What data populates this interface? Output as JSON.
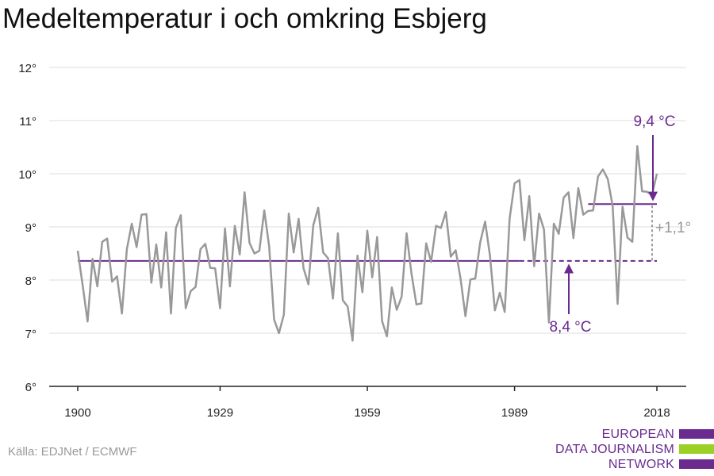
{
  "title": "Medeltemperatur i och omkring Esbjerg",
  "source": "Källa: EDJNet / ECMWF",
  "logo": {
    "lines": [
      "EUROPEAN",
      "DATA JOURNALISM",
      "NETWORK"
    ],
    "colors": [
      "#6a2a8e",
      "#9bd026",
      "#6a2a8e"
    ]
  },
  "chart_data": {
    "type": "line",
    "title": "Medeltemperatur i och omkring Esbjerg",
    "xlabel": "",
    "ylabel": "",
    "xlim": [
      1900,
      2018
    ],
    "ylim": [
      6,
      12
    ],
    "x_ticks": [
      1900,
      1929,
      1959,
      1989,
      2018
    ],
    "x_tick_labels": [
      "1900",
      "1929",
      "1959",
      "1989",
      "2018"
    ],
    "y_ticks": [
      6,
      7,
      8,
      9,
      10,
      11,
      12
    ],
    "y_tick_labels": [
      "6°",
      "7°",
      "8°",
      "9°",
      "10°",
      "11°",
      "12°"
    ],
    "grid": true,
    "legend": "none",
    "series": [
      {
        "color": "#999999",
        "x": [
          1900,
          1901,
          1902,
          1903,
          1904,
          1905,
          1906,
          1907,
          1908,
          1909,
          1910,
          1911,
          1912,
          1913,
          1914,
          1915,
          1916,
          1917,
          1918,
          1919,
          1920,
          1921,
          1922,
          1923,
          1924,
          1925,
          1926,
          1927,
          1928,
          1929,
          1930,
          1931,
          1932,
          1933,
          1934,
          1935,
          1936,
          1937,
          1938,
          1939,
          1940,
          1941,
          1942,
          1943,
          1944,
          1945,
          1946,
          1947,
          1948,
          1949,
          1950,
          1951,
          1952,
          1953,
          1954,
          1955,
          1956,
          1957,
          1958,
          1959,
          1960,
          1961,
          1962,
          1963,
          1964,
          1965,
          1966,
          1967,
          1968,
          1969,
          1970,
          1971,
          1972,
          1973,
          1974,
          1975,
          1976,
          1977,
          1978,
          1979,
          1980,
          1981,
          1982,
          1983,
          1984,
          1985,
          1986,
          1987,
          1988,
          1989,
          1990,
          1991,
          1992,
          1993,
          1994,
          1995,
          1996,
          1997,
          1998,
          1999,
          2000,
          2001,
          2002,
          2003,
          2004,
          2005,
          2006,
          2007,
          2008,
          2009,
          2010,
          2011,
          2012,
          2013,
          2014,
          2015,
          2016,
          2017,
          2018
        ],
        "values": [
          8.55,
          7.9,
          7.22,
          8.4,
          7.88,
          8.72,
          8.78,
          7.97,
          8.07,
          7.37,
          8.58,
          9.06,
          8.62,
          9.23,
          9.24,
          7.95,
          8.67,
          7.86,
          8.9,
          7.37,
          8.98,
          9.22,
          7.47,
          7.79,
          7.87,
          8.58,
          8.68,
          8.23,
          8.22,
          7.47,
          8.97,
          7.88,
          9.02,
          8.48,
          9.65,
          8.7,
          8.5,
          8.55,
          9.31,
          8.63,
          7.26,
          7.0,
          7.35,
          9.25,
          8.52,
          9.15,
          8.22,
          7.92,
          9.03,
          9.36,
          8.52,
          8.41,
          7.65,
          8.88,
          7.62,
          7.5,
          6.86,
          8.46,
          7.77,
          8.93,
          8.05,
          8.81,
          7.23,
          6.94,
          7.86,
          7.44,
          7.69,
          8.88,
          8.12,
          7.54,
          7.56,
          8.69,
          8.34,
          9.02,
          8.98,
          9.28,
          8.44,
          8.56,
          8.03,
          7.32,
          8.01,
          8.03,
          8.71,
          9.1,
          8.45,
          7.43,
          7.76,
          7.4,
          9.16,
          9.82,
          9.88,
          8.75,
          9.58,
          8.26,
          9.25,
          8.95,
          7.2,
          9.06,
          8.87,
          9.55,
          9.65,
          8.79,
          9.73,
          9.23,
          9.3,
          9.31,
          9.95,
          10.08,
          9.9,
          9.39,
          7.55,
          9.38,
          8.8,
          8.72,
          10.52,
          9.67,
          9.66,
          9.6,
          10.0
        ]
      }
    ],
    "reference_lines": [
      {
        "from": 1900,
        "to": 1990,
        "value": 8.36,
        "style": "solid",
        "color": "#6a2a8e"
      },
      {
        "from": 1990,
        "to": 2018,
        "value": 8.36,
        "style": "dashed",
        "color": "#6a2a8e"
      },
      {
        "from": 2004,
        "to": 2018,
        "value": 9.43,
        "style": "solid",
        "color": "#6a2a8e"
      }
    ],
    "annotations": [
      {
        "text": "9,4 °C",
        "color": "#6a2a8e",
        "x": 2018,
        "y": 9.43
      },
      {
        "text": "8,4 °C",
        "color": "#6a2a8e",
        "x": 2003,
        "y": 8.36
      },
      {
        "text": "+1,1°",
        "color": "#999999",
        "x": 2018,
        "y": 8.9
      }
    ]
  }
}
